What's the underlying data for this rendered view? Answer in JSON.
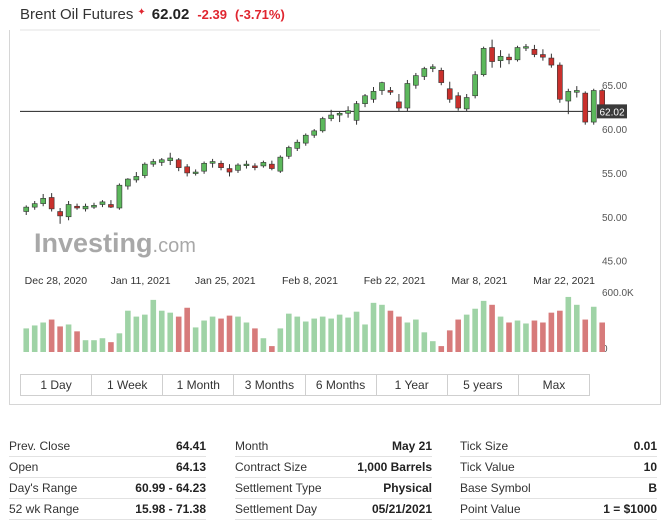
{
  "header": {
    "title": "Brent Oil Futures",
    "arrow": "✦",
    "price": "62.02",
    "change": "-2.39",
    "change_pct": "(-3.71%)"
  },
  "colors": {
    "up": "#5cb85c",
    "down": "#c9302c",
    "up_volume": "#9fd3a6",
    "down_volume": "#d77b7b",
    "accent_down": "#e0252f"
  },
  "chart_data": {
    "type": "candlestick",
    "watermark": "Investing.com",
    "y_ticks": [
      45,
      50,
      55,
      60,
      65
    ],
    "y_tick_labels": [
      "45.00",
      "50.00",
      "55.00",
      "60.00",
      "65.00"
    ],
    "ylim": [
      44.5,
      70.5
    ],
    "last_price_label": "62.02",
    "last_price": 62.02,
    "x_tick_labels": [
      "Dec 28, 2020",
      "Jan 11, 2021",
      "Jan 25, 2021",
      "Feb 8, 2021",
      "Feb 22, 2021",
      "Mar 8, 2021",
      "Mar 22, 2021"
    ],
    "x_tick_index": [
      3.5,
      13.5,
      23.5,
      33.5,
      43.5,
      53.5,
      63.5
    ],
    "volume_axis_labels": [
      "600.0K",
      "0"
    ],
    "volume_max": 600,
    "candles": [
      {
        "o": 50.6,
        "h": 51.3,
        "l": 50.2,
        "c": 51.1
      },
      {
        "o": 51.1,
        "h": 51.8,
        "l": 50.8,
        "c": 51.5
      },
      {
        "o": 51.5,
        "h": 52.6,
        "l": 51.2,
        "c": 52.1
      },
      {
        "o": 52.2,
        "h": 52.7,
        "l": 50.6,
        "c": 50.9
      },
      {
        "o": 50.6,
        "h": 51.0,
        "l": 49.2,
        "c": 50.1
      },
      {
        "o": 50.0,
        "h": 51.8,
        "l": 49.6,
        "c": 51.4
      },
      {
        "o": 51.2,
        "h": 51.5,
        "l": 50.8,
        "c": 51.0
      },
      {
        "o": 50.9,
        "h": 51.5,
        "l": 50.6,
        "c": 51.2
      },
      {
        "o": 51.1,
        "h": 51.6,
        "l": 50.9,
        "c": 51.3
      },
      {
        "o": 51.4,
        "h": 51.9,
        "l": 51.1,
        "c": 51.7
      },
      {
        "o": 51.4,
        "h": 51.9,
        "l": 51.0,
        "c": 51.1
      },
      {
        "o": 51.0,
        "h": 53.8,
        "l": 50.8,
        "c": 53.6
      },
      {
        "o": 53.5,
        "h": 54.4,
        "l": 53.1,
        "c": 54.3
      },
      {
        "o": 54.2,
        "h": 55.1,
        "l": 53.9,
        "c": 54.6
      },
      {
        "o": 54.7,
        "h": 56.2,
        "l": 54.4,
        "c": 56.0
      },
      {
        "o": 56.0,
        "h": 56.6,
        "l": 55.7,
        "c": 56.3
      },
      {
        "o": 56.2,
        "h": 56.7,
        "l": 55.8,
        "c": 56.5
      },
      {
        "o": 56.4,
        "h": 57.3,
        "l": 55.9,
        "c": 56.7
      },
      {
        "o": 56.5,
        "h": 56.7,
        "l": 55.2,
        "c": 55.6
      },
      {
        "o": 55.7,
        "h": 56.0,
        "l": 54.6,
        "c": 55.0
      },
      {
        "o": 55.0,
        "h": 55.4,
        "l": 54.7,
        "c": 55.1
      },
      {
        "o": 55.2,
        "h": 56.3,
        "l": 54.9,
        "c": 56.1
      },
      {
        "o": 56.1,
        "h": 56.6,
        "l": 55.6,
        "c": 56.3
      },
      {
        "o": 56.1,
        "h": 56.4,
        "l": 55.3,
        "c": 55.6
      },
      {
        "o": 55.5,
        "h": 56.0,
        "l": 54.6,
        "c": 55.1
      },
      {
        "o": 55.3,
        "h": 56.1,
        "l": 55.0,
        "c": 55.9
      },
      {
        "o": 55.9,
        "h": 56.4,
        "l": 55.5,
        "c": 56.0
      },
      {
        "o": 55.8,
        "h": 56.1,
        "l": 55.3,
        "c": 55.6
      },
      {
        "o": 55.8,
        "h": 56.4,
        "l": 55.6,
        "c": 56.2
      },
      {
        "o": 56.0,
        "h": 56.4,
        "l": 55.3,
        "c": 55.5
      },
      {
        "o": 55.2,
        "h": 57.0,
        "l": 55.0,
        "c": 56.8
      },
      {
        "o": 56.9,
        "h": 58.1,
        "l": 56.6,
        "c": 57.9
      },
      {
        "o": 57.8,
        "h": 58.8,
        "l": 57.5,
        "c": 58.5
      },
      {
        "o": 58.4,
        "h": 59.5,
        "l": 58.1,
        "c": 59.3
      },
      {
        "o": 59.3,
        "h": 60.0,
        "l": 59.0,
        "c": 59.8
      },
      {
        "o": 59.8,
        "h": 61.4,
        "l": 59.6,
        "c": 61.2
      },
      {
        "o": 61.2,
        "h": 62.2,
        "l": 60.9,
        "c": 61.6
      },
      {
        "o": 61.6,
        "h": 62.0,
        "l": 60.8,
        "c": 61.8
      },
      {
        "o": 61.8,
        "h": 62.6,
        "l": 61.3,
        "c": 62.1
      },
      {
        "o": 61.0,
        "h": 63.2,
        "l": 60.5,
        "c": 62.9
      },
      {
        "o": 62.9,
        "h": 64.0,
        "l": 62.5,
        "c": 63.8
      },
      {
        "o": 63.4,
        "h": 64.8,
        "l": 63.0,
        "c": 64.3
      },
      {
        "o": 64.4,
        "h": 65.4,
        "l": 63.9,
        "c": 65.3
      },
      {
        "o": 64.4,
        "h": 64.8,
        "l": 63.9,
        "c": 64.2
      },
      {
        "o": 63.1,
        "h": 64.0,
        "l": 62.0,
        "c": 62.4
      },
      {
        "o": 62.4,
        "h": 65.6,
        "l": 62.0,
        "c": 65.2
      },
      {
        "o": 65.0,
        "h": 66.4,
        "l": 64.6,
        "c": 66.1
      },
      {
        "o": 66.0,
        "h": 67.1,
        "l": 65.6,
        "c": 66.9
      },
      {
        "o": 66.9,
        "h": 67.4,
        "l": 66.5,
        "c": 67.1
      },
      {
        "o": 66.7,
        "h": 67.0,
        "l": 65.0,
        "c": 65.3
      },
      {
        "o": 64.6,
        "h": 65.4,
        "l": 63.0,
        "c": 63.4
      },
      {
        "o": 63.8,
        "h": 64.2,
        "l": 62.1,
        "c": 62.4
      },
      {
        "o": 62.3,
        "h": 64.0,
        "l": 62.0,
        "c": 63.6
      },
      {
        "o": 63.8,
        "h": 66.6,
        "l": 63.5,
        "c": 66.2
      },
      {
        "o": 66.2,
        "h": 69.4,
        "l": 66.0,
        "c": 69.2
      },
      {
        "o": 69.3,
        "h": 70.2,
        "l": 67.0,
        "c": 67.7
      },
      {
        "o": 67.8,
        "h": 69.0,
        "l": 67.0,
        "c": 68.3
      },
      {
        "o": 68.2,
        "h": 68.6,
        "l": 67.4,
        "c": 67.9
      },
      {
        "o": 67.9,
        "h": 69.5,
        "l": 67.7,
        "c": 69.3
      },
      {
        "o": 69.3,
        "h": 69.7,
        "l": 68.9,
        "c": 69.4
      },
      {
        "o": 69.1,
        "h": 69.6,
        "l": 68.2,
        "c": 68.5
      },
      {
        "o": 68.5,
        "h": 69.1,
        "l": 67.8,
        "c": 68.2
      },
      {
        "o": 68.1,
        "h": 68.6,
        "l": 67.0,
        "c": 67.3
      },
      {
        "o": 67.3,
        "h": 67.6,
        "l": 63.0,
        "c": 63.4
      },
      {
        "o": 63.2,
        "h": 64.6,
        "l": 61.7,
        "c": 64.3
      },
      {
        "o": 64.2,
        "h": 64.9,
        "l": 63.6,
        "c": 64.4
      },
      {
        "o": 64.1,
        "h": 64.3,
        "l": 60.5,
        "c": 60.8
      },
      {
        "o": 60.8,
        "h": 64.6,
        "l": 60.5,
        "c": 64.4
      },
      {
        "o": 64.4,
        "h": 64.6,
        "l": 61.6,
        "c": 62.0
      }
    ],
    "volumes": [
      240,
      270,
      300,
      330,
      260,
      280,
      210,
      120,
      120,
      140,
      100,
      190,
      420,
      360,
      380,
      530,
      420,
      400,
      360,
      450,
      250,
      320,
      360,
      340,
      370,
      360,
      300,
      240,
      140,
      60,
      240,
      390,
      360,
      310,
      340,
      360,
      340,
      380,
      350,
      410,
      280,
      500,
      480,
      420,
      360,
      300,
      330,
      200,
      110,
      60,
      220,
      330,
      380,
      440,
      520,
      480,
      360,
      300,
      320,
      290,
      320,
      300,
      400,
      420,
      560,
      480,
      330,
      460,
      300
    ]
  },
  "range_buttons": [
    "1 Day",
    "1 Week",
    "1 Month",
    "3 Months",
    "6 Months",
    "1 Year",
    "5 years",
    "Max"
  ],
  "stats": [
    [
      {
        "label": "Prev. Close",
        "value": "64.41"
      },
      {
        "label": "Open",
        "value": "64.13"
      },
      {
        "label": "Day's Range",
        "value": "60.99 - 64.23"
      },
      {
        "label": "52 wk Range",
        "value": "15.98 - 71.38"
      }
    ],
    [
      {
        "label": "Month",
        "value": "May 21"
      },
      {
        "label": "Contract Size",
        "value": "1,000 Barrels"
      },
      {
        "label": "Settlement Type",
        "value": "Physical"
      },
      {
        "label": "Settlement Day",
        "value": "05/21/2021"
      }
    ],
    [
      {
        "label": "Tick Size",
        "value": "0.01"
      },
      {
        "label": "Tick Value",
        "value": "10"
      },
      {
        "label": "Base Symbol",
        "value": "B"
      },
      {
        "label": "Point Value",
        "value": "1 = $1000"
      }
    ]
  ]
}
